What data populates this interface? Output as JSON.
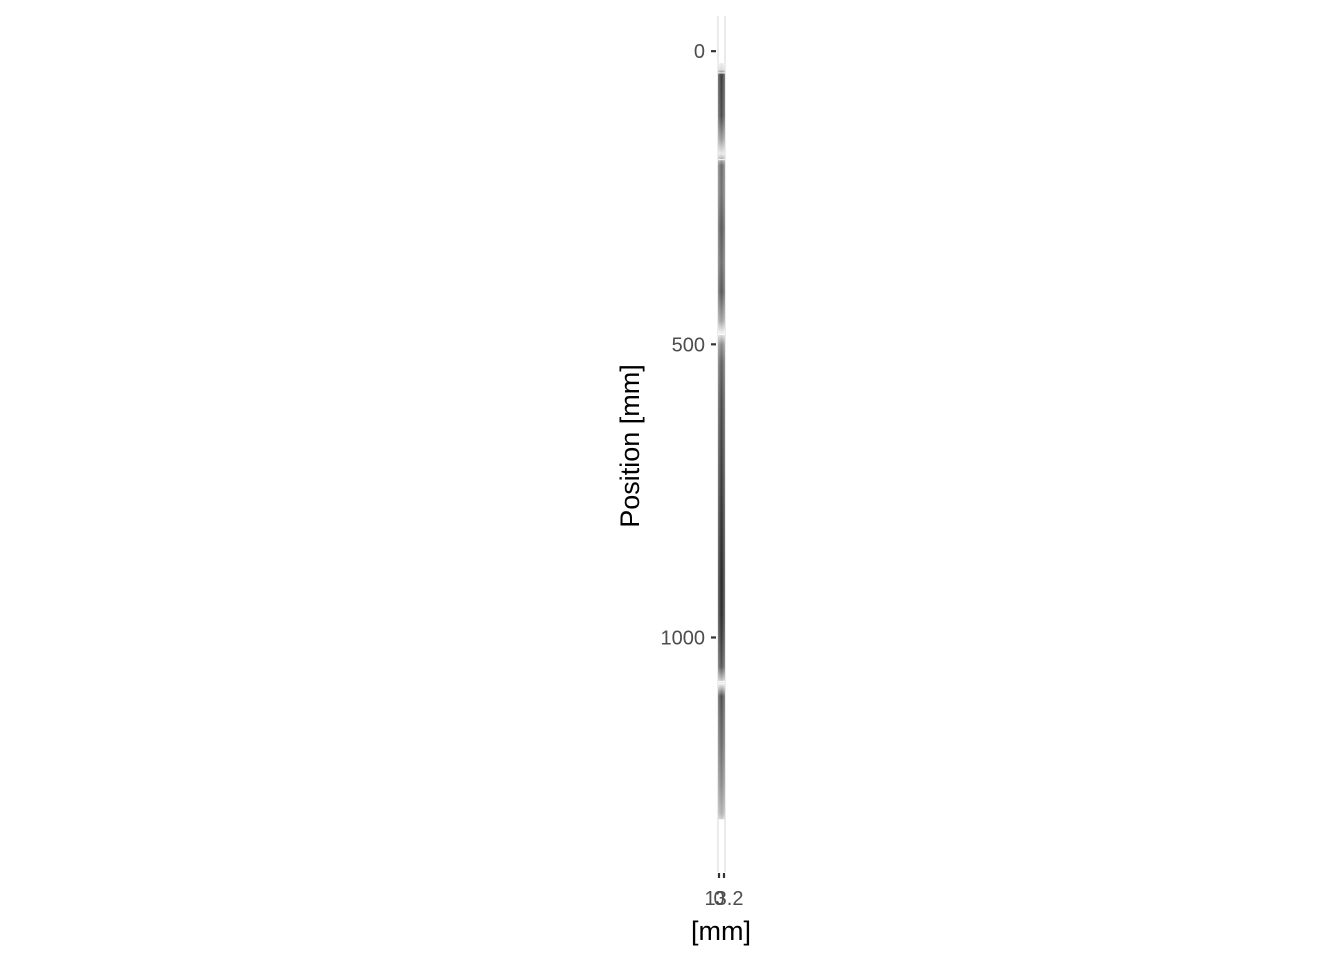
{
  "chart_data": {
    "type": "heatmap",
    "title": "",
    "xlabel": "[mm]",
    "ylabel": "Position [mm]",
    "x_ticks": [
      "0",
      "13.2"
    ],
    "y_ticks": [
      0,
      500,
      1000
    ],
    "xlim": [
      0,
      13.2
    ],
    "ylim": [
      1400,
      -60
    ],
    "grid": true,
    "legend": "none",
    "colormap": "grayscale",
    "image_extent": {
      "y_start": 20,
      "y_end": 1310
    },
    "intensity_profile": [
      {
        "y": 20,
        "gray": "#eeeeee"
      },
      {
        "y": 32,
        "gray": "#d8d8d8"
      },
      {
        "y": 40,
        "gray": "#3a3a3a"
      },
      {
        "y": 110,
        "gray": "#4a4a4a"
      },
      {
        "y": 150,
        "gray": "#9a9a9a"
      },
      {
        "y": 175,
        "gray": "#e8e8e8"
      },
      {
        "y": 195,
        "gray": "#6a6a6a"
      },
      {
        "y": 240,
        "gray": "#707070"
      },
      {
        "y": 300,
        "gray": "#575757"
      },
      {
        "y": 360,
        "gray": "#6a6a6a"
      },
      {
        "y": 410,
        "gray": "#555555"
      },
      {
        "y": 460,
        "gray": "#a0a0a0"
      },
      {
        "y": 480,
        "gray": "#f0f0f0"
      },
      {
        "y": 500,
        "gray": "#8a8a8a"
      },
      {
        "y": 530,
        "gray": "#606060"
      },
      {
        "y": 600,
        "gray": "#4a4a4a"
      },
      {
        "y": 700,
        "gray": "#3d3d3d"
      },
      {
        "y": 800,
        "gray": "#303030"
      },
      {
        "y": 900,
        "gray": "#262626"
      },
      {
        "y": 960,
        "gray": "#2a2a2a"
      },
      {
        "y": 1000,
        "gray": "#3a3a3a"
      },
      {
        "y": 1050,
        "gray": "#555555"
      },
      {
        "y": 1080,
        "gray": "#e6e6e6"
      },
      {
        "y": 1100,
        "gray": "#4d4d4d"
      },
      {
        "y": 1180,
        "gray": "#6a6a6a"
      },
      {
        "y": 1250,
        "gray": "#8a8a8a"
      },
      {
        "y": 1300,
        "gray": "#b0b0b0"
      },
      {
        "y": 1310,
        "gray": "#d0d0d0"
      }
    ],
    "highlight_lines_y": [
      37,
      185,
      483,
      1075,
      1078
    ]
  }
}
